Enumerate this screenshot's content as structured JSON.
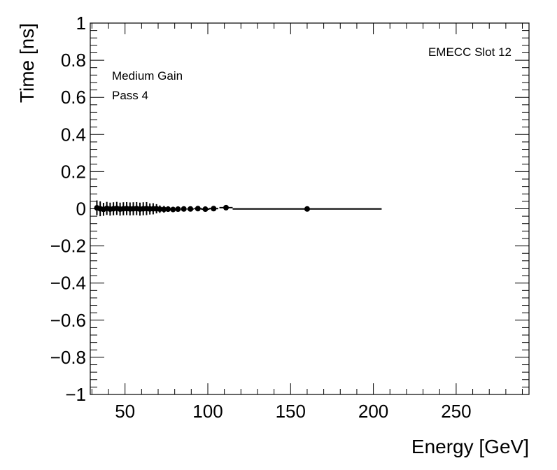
{
  "chart_data": {
    "type": "scatter",
    "title": "",
    "xlabel": "Energy [GeV]",
    "ylabel": "Time [ns]",
    "xlim": [
      29,
      294
    ],
    "ylim": [
      -1,
      1
    ],
    "grid": false,
    "x_ticks": [
      50,
      100,
      150,
      200,
      250
    ],
    "y_ticks": [
      -1,
      -0.8,
      -0.6,
      -0.4,
      -0.2,
      0,
      0.2,
      0.4,
      0.6,
      0.8,
      1
    ],
    "y_tick_labels": [
      "−1",
      "−0.8",
      "−0.6",
      "−0.4",
      "−0.2",
      "0",
      "0.2",
      "0.4",
      "0.6",
      "0.8",
      "1"
    ],
    "annotations": {
      "top_right": "EMECC Slot 12",
      "gain": "Medium Gain",
      "pass": "Pass 4"
    },
    "marker_color": "#000000",
    "series": [
      {
        "points": [
          {
            "x": 33.0,
            "y": 0.005,
            "xerr": 1.0,
            "yerr": 0.04
          },
          {
            "x": 35.0,
            "y": 0.0,
            "xerr": 1.0,
            "yerr": 0.04
          },
          {
            "x": 37.0,
            "y": -0.003,
            "xerr": 1.0,
            "yerr": 0.035
          },
          {
            "x": 39.0,
            "y": 0.002,
            "xerr": 1.0,
            "yerr": 0.035
          },
          {
            "x": 41.0,
            "y": -0.002,
            "xerr": 1.0,
            "yerr": 0.035
          },
          {
            "x": 43.0,
            "y": 0.0,
            "xerr": 1.0,
            "yerr": 0.035
          },
          {
            "x": 45.0,
            "y": 0.002,
            "xerr": 1.0,
            "yerr": 0.035
          },
          {
            "x": 47.0,
            "y": -0.002,
            "xerr": 1.0,
            "yerr": 0.035
          },
          {
            "x": 49.0,
            "y": 0.0,
            "xerr": 1.0,
            "yerr": 0.035
          },
          {
            "x": 51.0,
            "y": 0.001,
            "xerr": 1.0,
            "yerr": 0.035
          },
          {
            "x": 53.0,
            "y": -0.001,
            "xerr": 1.0,
            "yerr": 0.035
          },
          {
            "x": 55.0,
            "y": 0.0,
            "xerr": 1.0,
            "yerr": 0.035
          },
          {
            "x": 57.0,
            "y": 0.001,
            "xerr": 1.0,
            "yerr": 0.035
          },
          {
            "x": 59.0,
            "y": -0.002,
            "xerr": 1.0,
            "yerr": 0.035
          },
          {
            "x": 61.0,
            "y": 0.0,
            "xerr": 1.0,
            "yerr": 0.035
          },
          {
            "x": 63.0,
            "y": 0.001,
            "xerr": 1.0,
            "yerr": 0.035
          },
          {
            "x": 65.0,
            "y": -0.001,
            "xerr": 1.0,
            "yerr": 0.03
          },
          {
            "x": 67.0,
            "y": 0.0,
            "xerr": 1.0,
            "yerr": 0.03
          },
          {
            "x": 69.0,
            "y": 0.0,
            "xerr": 1.0,
            "yerr": 0.025
          },
          {
            "x": 71.0,
            "y": -0.002,
            "xerr": 1.2,
            "yerr": 0.02
          },
          {
            "x": 73.5,
            "y": -0.003,
            "xerr": 1.2,
            "yerr": 0.018
          },
          {
            "x": 76.0,
            "y": -0.002,
            "xerr": 1.3,
            "yerr": 0.015
          },
          {
            "x": 79.0,
            "y": -0.004,
            "xerr": 1.4,
            "yerr": 0.013
          },
          {
            "x": 82.0,
            "y": -0.002,
            "xerr": 1.5,
            "yerr": 0.012
          },
          {
            "x": 85.5,
            "y": -0.001,
            "xerr": 1.7,
            "yerr": 0.012
          },
          {
            "x": 89.5,
            "y": -0.001,
            "xerr": 2.0,
            "yerr": 0.012
          },
          {
            "x": 94.0,
            "y": 0.001,
            "xerr": 2.3,
            "yerr": 0.012
          },
          {
            "x": 98.5,
            "y": -0.002,
            "xerr": 2.5,
            "yerr": 0.012
          },
          {
            "x": 103.5,
            "y": 0.001,
            "xerr": 2.8,
            "yerr": 0.012
          },
          {
            "x": 111.0,
            "y": 0.006,
            "xerr": 4.0,
            "yerr": 0.012
          },
          {
            "x": 160.0,
            "y": -0.001,
            "xerr": 45.0,
            "yerr": 0.01
          }
        ]
      }
    ]
  }
}
